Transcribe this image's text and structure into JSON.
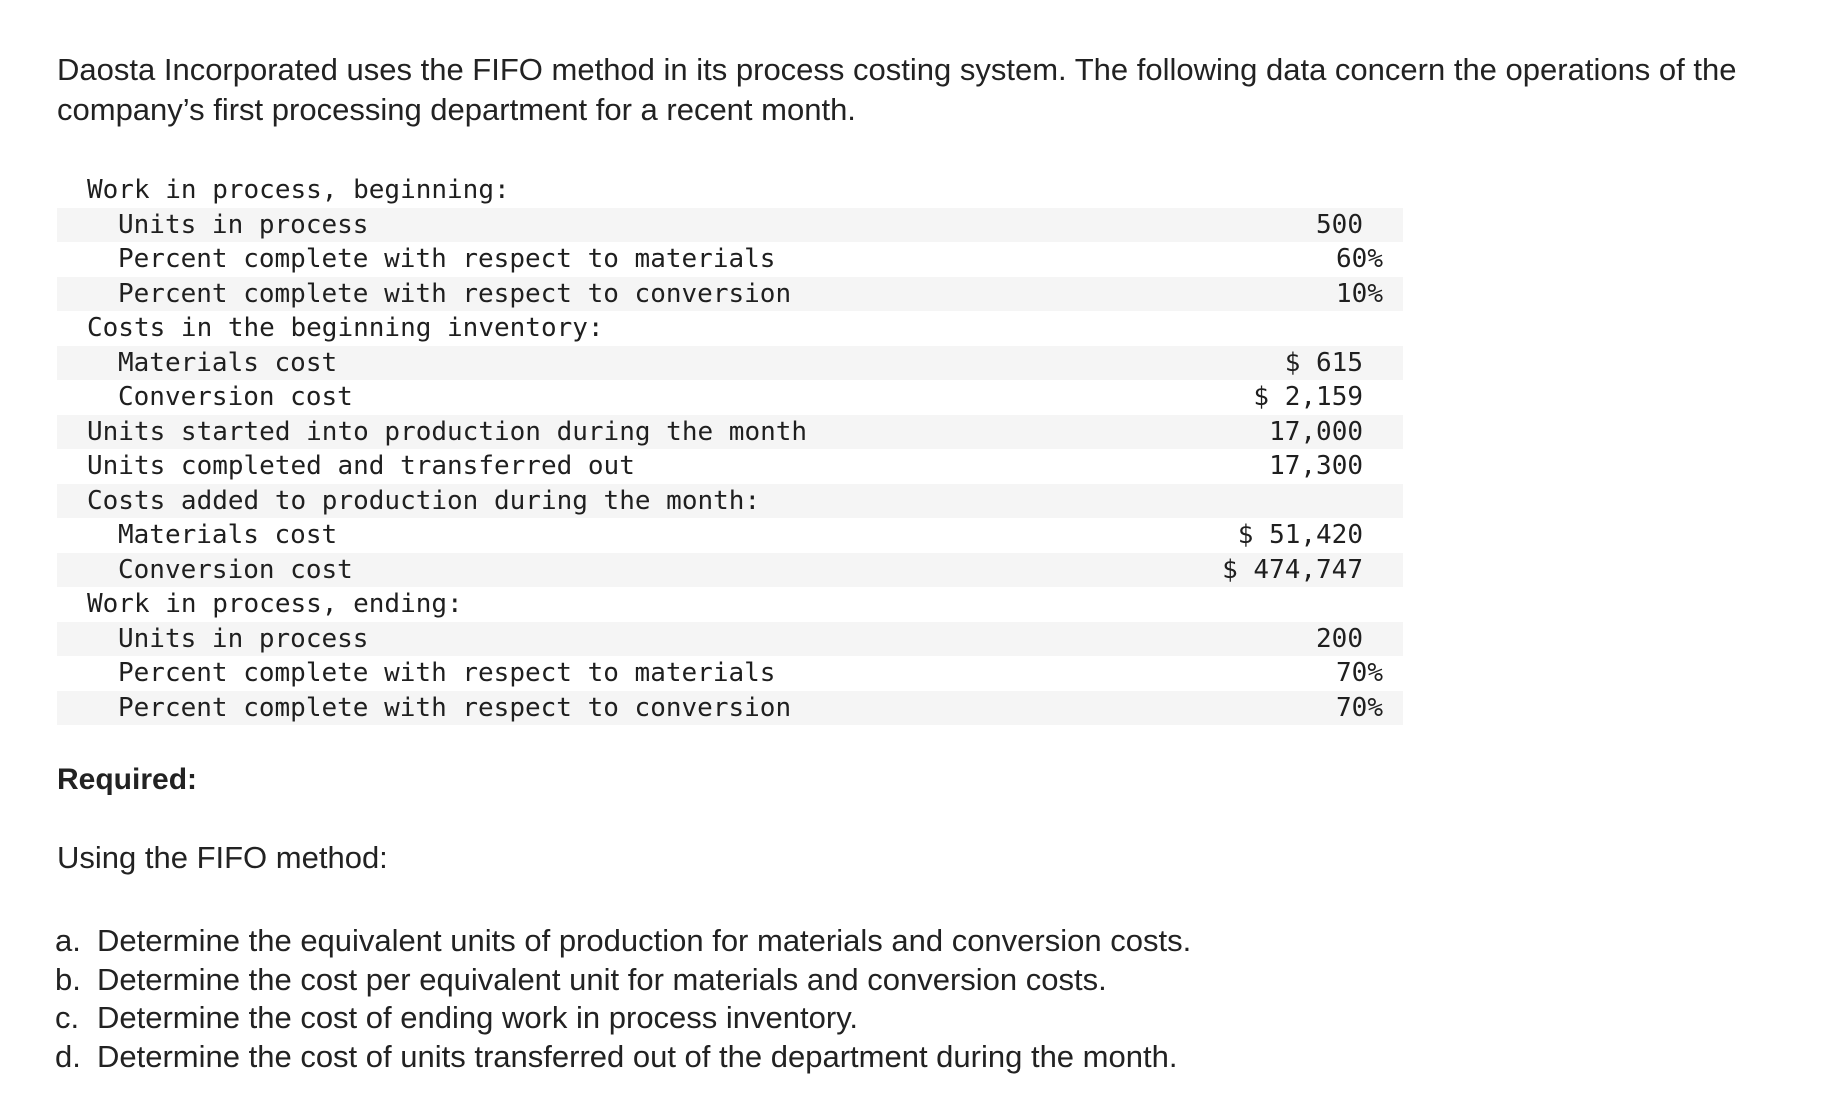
{
  "intro": "Daosta Incorporated uses the FIFO method in its process costing system. The following data concern the operations of the company’s first processing department for a recent month.",
  "table": {
    "rows": [
      {
        "label": "Work in process, beginning:",
        "value": ""
      },
      {
        "label": "Units in process",
        "value": "500"
      },
      {
        "label": "Percent complete with respect to materials",
        "value": "60%"
      },
      {
        "label": "Percent complete with respect to conversion",
        "value": "10%"
      },
      {
        "label": "Costs in the beginning inventory:",
        "value": ""
      },
      {
        "label": "Materials cost",
        "value": "$ 615"
      },
      {
        "label": "Conversion cost",
        "value": "$ 2,159"
      },
      {
        "label": "Units started into production during the month",
        "value": "17,000"
      },
      {
        "label": "Units completed and transferred out",
        "value": "17,300"
      },
      {
        "label": "Costs added to production during the month:",
        "value": ""
      },
      {
        "label": "Materials cost",
        "value": "$ 51,420"
      },
      {
        "label": "Conversion cost",
        "value": "$ 474,747"
      },
      {
        "label": "Work in process, ending:",
        "value": ""
      },
      {
        "label": "Units in process",
        "value": "200"
      },
      {
        "label": "Percent complete with respect to materials",
        "value": "70%"
      },
      {
        "label": "Percent complete with respect to conversion",
        "value": "70%"
      }
    ]
  },
  "required": {
    "heading": "Required:",
    "method": "Using the FIFO method:",
    "items": [
      {
        "marker": "a.",
        "text": "Determine the equivalent units of production for materials and conversion costs."
      },
      {
        "marker": "b.",
        "text": "Determine the cost per equivalent unit for materials and conversion costs."
      },
      {
        "marker": "c.",
        "text": "Determine the cost of ending work in process inventory."
      },
      {
        "marker": "d.",
        "text": "Determine the cost of units transferred out of the department during the month."
      }
    ]
  }
}
